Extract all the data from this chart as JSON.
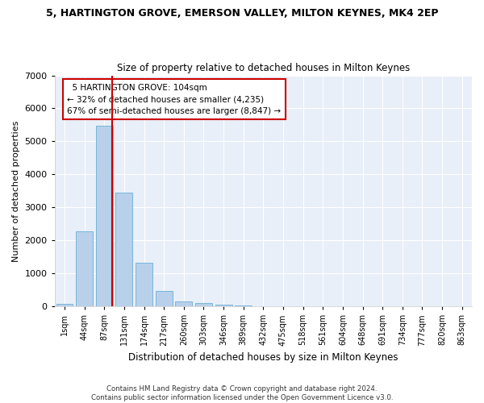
{
  "title": "5, HARTINGTON GROVE, EMERSON VALLEY, MILTON KEYNES, MK4 2EP",
  "subtitle": "Size of property relative to detached houses in Milton Keynes",
  "xlabel": "Distribution of detached houses by size in Milton Keynes",
  "ylabel": "Number of detached properties",
  "footer_line1": "Contains HM Land Registry data © Crown copyright and database right 2024.",
  "footer_line2": "Contains public sector information licensed under the Open Government Licence v3.0.",
  "bar_color": "#b8d0ea",
  "bar_edge_color": "#6aaed6",
  "background_color": "#e8eff8",
  "grid_color": "#ffffff",
  "annotation_box_color": "#cc0000",
  "vline_color": "#cc0000",
  "categories": [
    "1sqm",
    "44sqm",
    "87sqm",
    "131sqm",
    "174sqm",
    "217sqm",
    "260sqm",
    "303sqm",
    "346sqm",
    "389sqm",
    "432sqm",
    "475sqm",
    "518sqm",
    "561sqm",
    "604sqm",
    "648sqm",
    "691sqm",
    "734sqm",
    "777sqm",
    "820sqm",
    "863sqm"
  ],
  "values": [
    80,
    2280,
    5480,
    3450,
    1320,
    460,
    160,
    90,
    50,
    30,
    10,
    5,
    2,
    1,
    0,
    0,
    0,
    0,
    0,
    0,
    0
  ],
  "property_label": "5 HARTINGTON GROVE: 104sqm",
  "pct_smaller": "32% of detached houses are smaller (4,235)",
  "pct_larger": "67% of semi-detached houses are larger (8,847)",
  "vline_x": 2.4,
  "ylim": [
    0,
    7000
  ],
  "yticks": [
    0,
    1000,
    2000,
    3000,
    4000,
    5000,
    6000,
    7000
  ]
}
